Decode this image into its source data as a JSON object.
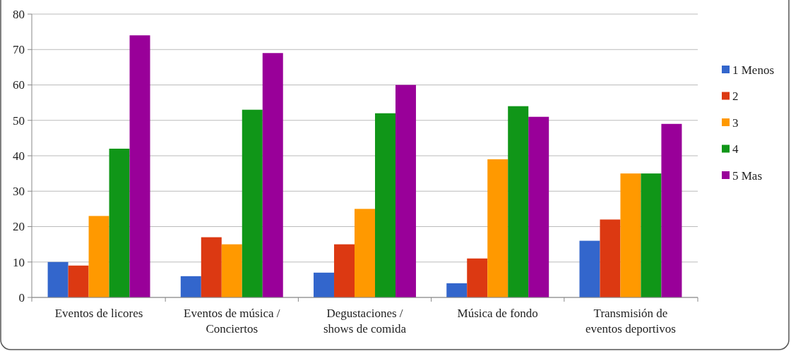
{
  "chart_data": {
    "type": "bar",
    "categories": [
      "Eventos de licores",
      "Eventos de música / Conciertos",
      "Degustaciones / shows de comida",
      "Música de fondo",
      "Transmisión de eventos deportivos"
    ],
    "series": [
      {
        "name": "1 Menos",
        "color": "#3366cc",
        "values": [
          10,
          6,
          7,
          4,
          16
        ]
      },
      {
        "name": "2",
        "color": "#dc3912",
        "values": [
          9,
          17,
          15,
          11,
          22
        ]
      },
      {
        "name": "3",
        "color": "#ff9900",
        "values": [
          23,
          15,
          25,
          39,
          35
        ]
      },
      {
        "name": "4",
        "color": "#109618",
        "values": [
          42,
          53,
          52,
          54,
          35
        ]
      },
      {
        "name": "5 Mas",
        "color": "#990099",
        "values": [
          74,
          69,
          60,
          51,
          49
        ]
      }
    ],
    "ylim": [
      0,
      80
    ],
    "yticks": [
      0,
      10,
      20,
      30,
      40,
      50,
      60,
      70,
      80
    ],
    "grid": "y",
    "legend": "right"
  }
}
